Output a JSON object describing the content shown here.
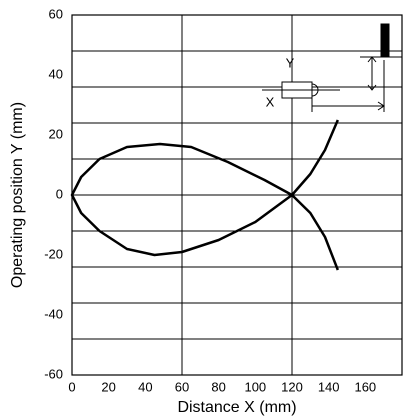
{
  "chart_data": {
    "type": "line",
    "xlabel": "Distance X (mm)",
    "ylabel": "Operating position Y (mm)",
    "annotations": [
      "Y",
      "X"
    ],
    "x": [
      145,
      138,
      130,
      120,
      100,
      80,
      60,
      45,
      30,
      15,
      5,
      0,
      5,
      15,
      30,
      48,
      65,
      85,
      105,
      120,
      130,
      138,
      145
    ],
    "values": [
      25,
      15,
      7,
      0,
      -9,
      -15,
      -19,
      -20,
      -18,
      -12,
      -6,
      0,
      6,
      12,
      16,
      17,
      16,
      11,
      5,
      0,
      -6,
      -14,
      -25
    ],
    "color": "#000000",
    "xlim": [
      0,
      180
    ],
    "xticks": [
      0,
      20,
      40,
      60,
      80,
      100,
      120,
      140,
      160
    ],
    "xgrid": [
      60,
      120
    ],
    "ylim": [
      -60,
      60
    ],
    "yticks": [
      -60,
      -40,
      -20,
      0,
      20,
      40,
      60
    ],
    "ygrid": [
      -48,
      -36,
      -24,
      -12,
      0,
      12,
      24,
      36,
      48
    ]
  }
}
